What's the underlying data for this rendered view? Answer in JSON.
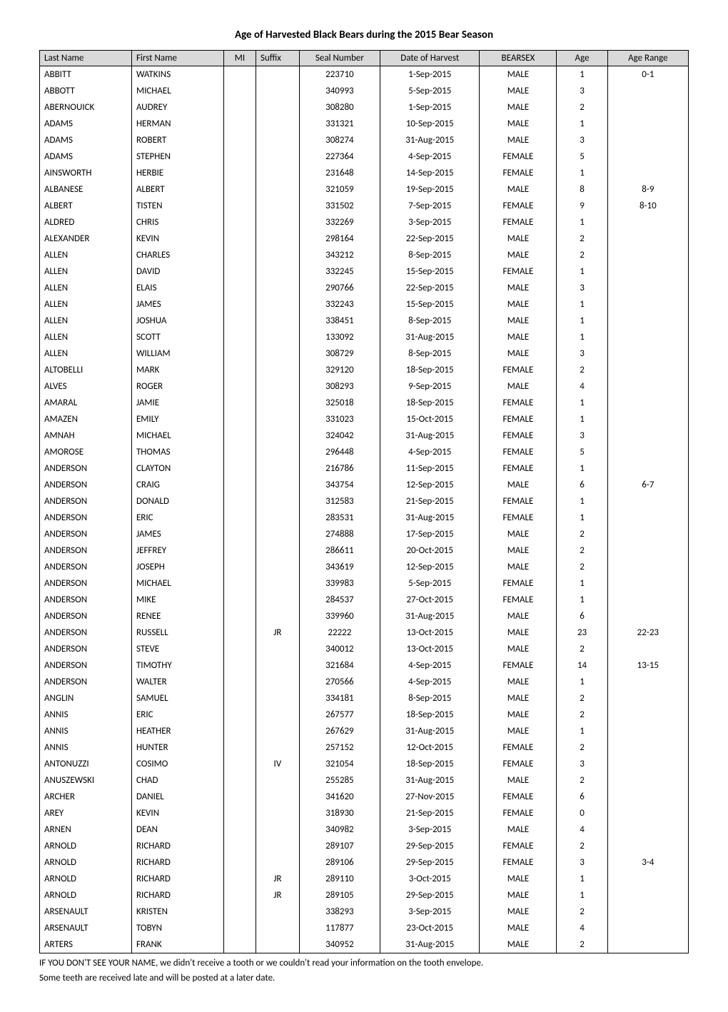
{
  "title": "Age of Harvested Black Bears during the 2015 Bear Season",
  "columns": [
    "Last Name",
    "First Name",
    "MI",
    "Suffix",
    "Seal Number",
    "Date of Harvest",
    "BEARSEX",
    "Age",
    "Age Range"
  ],
  "rows": [
    [
      "ABBITT",
      "WATKINS",
      "",
      "",
      "223710",
      "1-Sep-2015",
      "MALE",
      "1",
      "0-1"
    ],
    [
      "ABBOTT",
      "MICHAEL",
      "",
      "",
      "340993",
      "5-Sep-2015",
      "MALE",
      "3",
      ""
    ],
    [
      "ABERNOUICK",
      "AUDREY",
      "",
      "",
      "308280",
      "1-Sep-2015",
      "MALE",
      "2",
      ""
    ],
    [
      "ADAMS",
      "HERMAN",
      "",
      "",
      "331321",
      "10-Sep-2015",
      "MALE",
      "1",
      ""
    ],
    [
      "ADAMS",
      "ROBERT",
      "",
      "",
      "308274",
      "31-Aug-2015",
      "MALE",
      "3",
      ""
    ],
    [
      "ADAMS",
      "STEPHEN",
      "",
      "",
      "227364",
      "4-Sep-2015",
      "FEMALE",
      "5",
      ""
    ],
    [
      "AINSWORTH",
      "HERBIE",
      "",
      "",
      "231648",
      "14-Sep-2015",
      "FEMALE",
      "1",
      ""
    ],
    [
      "ALBANESE",
      "ALBERT",
      "",
      "",
      "321059",
      "19-Sep-2015",
      "MALE",
      "8",
      "8-9"
    ],
    [
      "ALBERT",
      "TISTEN",
      "",
      "",
      "331502",
      "7-Sep-2015",
      "FEMALE",
      "9",
      "8-10"
    ],
    [
      "ALDRED",
      "CHRIS",
      "",
      "",
      "332269",
      "3-Sep-2015",
      "FEMALE",
      "1",
      ""
    ],
    [
      "ALEXANDER",
      "KEVIN",
      "",
      "",
      "298164",
      "22-Sep-2015",
      "MALE",
      "2",
      ""
    ],
    [
      "ALLEN",
      "CHARLES",
      "",
      "",
      "343212",
      "8-Sep-2015",
      "MALE",
      "2",
      ""
    ],
    [
      "ALLEN",
      "DAVID",
      "",
      "",
      "332245",
      "15-Sep-2015",
      "FEMALE",
      "1",
      ""
    ],
    [
      "ALLEN",
      "ELAIS",
      "",
      "",
      "290766",
      "22-Sep-2015",
      "MALE",
      "3",
      ""
    ],
    [
      "ALLEN",
      "JAMES",
      "",
      "",
      "332243",
      "15-Sep-2015",
      "MALE",
      "1",
      ""
    ],
    [
      "ALLEN",
      "JOSHUA",
      "",
      "",
      "338451",
      "8-Sep-2015",
      "MALE",
      "1",
      ""
    ],
    [
      "ALLEN",
      "SCOTT",
      "",
      "",
      "133092",
      "31-Aug-2015",
      "MALE",
      "1",
      ""
    ],
    [
      "ALLEN",
      "WILLIAM",
      "",
      "",
      "308729",
      "8-Sep-2015",
      "MALE",
      "3",
      ""
    ],
    [
      "ALTOBELLI",
      "MARK",
      "",
      "",
      "329120",
      "18-Sep-2015",
      "FEMALE",
      "2",
      ""
    ],
    [
      "ALVES",
      "ROGER",
      "",
      "",
      "308293",
      "9-Sep-2015",
      "MALE",
      "4",
      ""
    ],
    [
      "AMARAL",
      "JAMIE",
      "",
      "",
      "325018",
      "18-Sep-2015",
      "FEMALE",
      "1",
      ""
    ],
    [
      "AMAZEN",
      "EMILY",
      "",
      "",
      "331023",
      "15-Oct-2015",
      "FEMALE",
      "1",
      ""
    ],
    [
      "AMNAH",
      "MICHAEL",
      "",
      "",
      "324042",
      "31-Aug-2015",
      "FEMALE",
      "3",
      ""
    ],
    [
      "AMOROSE",
      "THOMAS",
      "",
      "",
      "296448",
      "4-Sep-2015",
      "FEMALE",
      "5",
      ""
    ],
    [
      "ANDERSON",
      "CLAYTON",
      "",
      "",
      "216786",
      "11-Sep-2015",
      "FEMALE",
      "1",
      ""
    ],
    [
      "ANDERSON",
      "CRAIG",
      "",
      "",
      "343754",
      "12-Sep-2015",
      "MALE",
      "6",
      "6-7"
    ],
    [
      "ANDERSON",
      "DONALD",
      "",
      "",
      "312583",
      "21-Sep-2015",
      "FEMALE",
      "1",
      ""
    ],
    [
      "ANDERSON",
      "ERIC",
      "",
      "",
      "283531",
      "31-Aug-2015",
      "FEMALE",
      "1",
      ""
    ],
    [
      "ANDERSON",
      "JAMES",
      "",
      "",
      "274888",
      "17-Sep-2015",
      "MALE",
      "2",
      ""
    ],
    [
      "ANDERSON",
      "JEFFREY",
      "",
      "",
      "286611",
      "20-Oct-2015",
      "MALE",
      "2",
      ""
    ],
    [
      "ANDERSON",
      "JOSEPH",
      "",
      "",
      "343619",
      "12-Sep-2015",
      "MALE",
      "2",
      ""
    ],
    [
      "ANDERSON",
      "MICHAEL",
      "",
      "",
      "339983",
      "5-Sep-2015",
      "FEMALE",
      "1",
      ""
    ],
    [
      "ANDERSON",
      "MIKE",
      "",
      "",
      "284537",
      "27-Oct-2015",
      "FEMALE",
      "1",
      ""
    ],
    [
      "ANDERSON",
      "RENEE",
      "",
      "",
      "339960",
      "31-Aug-2015",
      "MALE",
      "6",
      ""
    ],
    [
      "ANDERSON",
      "RUSSELL",
      "",
      "JR",
      "22222",
      "13-Oct-2015",
      "MALE",
      "23",
      "22-23"
    ],
    [
      "ANDERSON",
      "STEVE",
      "",
      "",
      "340012",
      "13-Oct-2015",
      "MALE",
      "2",
      ""
    ],
    [
      "ANDERSON",
      "TIMOTHY",
      "",
      "",
      "321684",
      "4-Sep-2015",
      "FEMALE",
      "14",
      "13-15"
    ],
    [
      "ANDERSON",
      "WALTER",
      "",
      "",
      "270566",
      "4-Sep-2015",
      "MALE",
      "1",
      ""
    ],
    [
      "ANGLIN",
      "SAMUEL",
      "",
      "",
      "334181",
      "8-Sep-2015",
      "MALE",
      "2",
      ""
    ],
    [
      "ANNIS",
      "ERIC",
      "",
      "",
      "267577",
      "18-Sep-2015",
      "MALE",
      "2",
      ""
    ],
    [
      "ANNIS",
      "HEATHER",
      "",
      "",
      "267629",
      "31-Aug-2015",
      "MALE",
      "1",
      ""
    ],
    [
      "ANNIS",
      "HUNTER",
      "",
      "",
      "257152",
      "12-Oct-2015",
      "FEMALE",
      "2",
      ""
    ],
    [
      "ANTONUZZI",
      "COSIMO",
      "",
      "IV",
      "321054",
      "18-Sep-2015",
      "FEMALE",
      "3",
      ""
    ],
    [
      "ANUSZEWSKI",
      "CHAD",
      "",
      "",
      "255285",
      "31-Aug-2015",
      "MALE",
      "2",
      ""
    ],
    [
      "ARCHER",
      "DANIEL",
      "",
      "",
      "341620",
      "27-Nov-2015",
      "FEMALE",
      "6",
      ""
    ],
    [
      "AREY",
      "KEVIN",
      "",
      "",
      "318930",
      "21-Sep-2015",
      "FEMALE",
      "0",
      ""
    ],
    [
      "ARNEN",
      "DEAN",
      "",
      "",
      "340982",
      "3-Sep-2015",
      "MALE",
      "4",
      ""
    ],
    [
      "ARNOLD",
      "RICHARD",
      "",
      "",
      "289107",
      "29-Sep-2015",
      "FEMALE",
      "2",
      ""
    ],
    [
      "ARNOLD",
      "RICHARD",
      "",
      "",
      "289106",
      "29-Sep-2015",
      "FEMALE",
      "3",
      "3-4"
    ],
    [
      "ARNOLD",
      "RICHARD",
      "",
      "JR",
      "289110",
      "3-Oct-2015",
      "MALE",
      "1",
      ""
    ],
    [
      "ARNOLD",
      "RICHARD",
      "",
      "JR",
      "289105",
      "29-Sep-2015",
      "MALE",
      "1",
      ""
    ],
    [
      "ARSENAULT",
      "KRISTEN",
      "",
      "",
      "338293",
      "3-Sep-2015",
      "MALE",
      "2",
      ""
    ],
    [
      "ARSENAULT",
      "TOBYN",
      "",
      "",
      "117877",
      "23-Oct-2015",
      "MALE",
      "4",
      ""
    ],
    [
      "ARTERS",
      "FRANK",
      "",
      "",
      "340952",
      "31-Aug-2015",
      "MALE",
      "2",
      ""
    ]
  ],
  "footnote1": "IF YOU DON'T SEE YOUR NAME, we didn't receive a tooth or we couldn't read your information on the tooth envelope.",
  "footnote2": "Some teeth are received late and will be posted at a later date."
}
